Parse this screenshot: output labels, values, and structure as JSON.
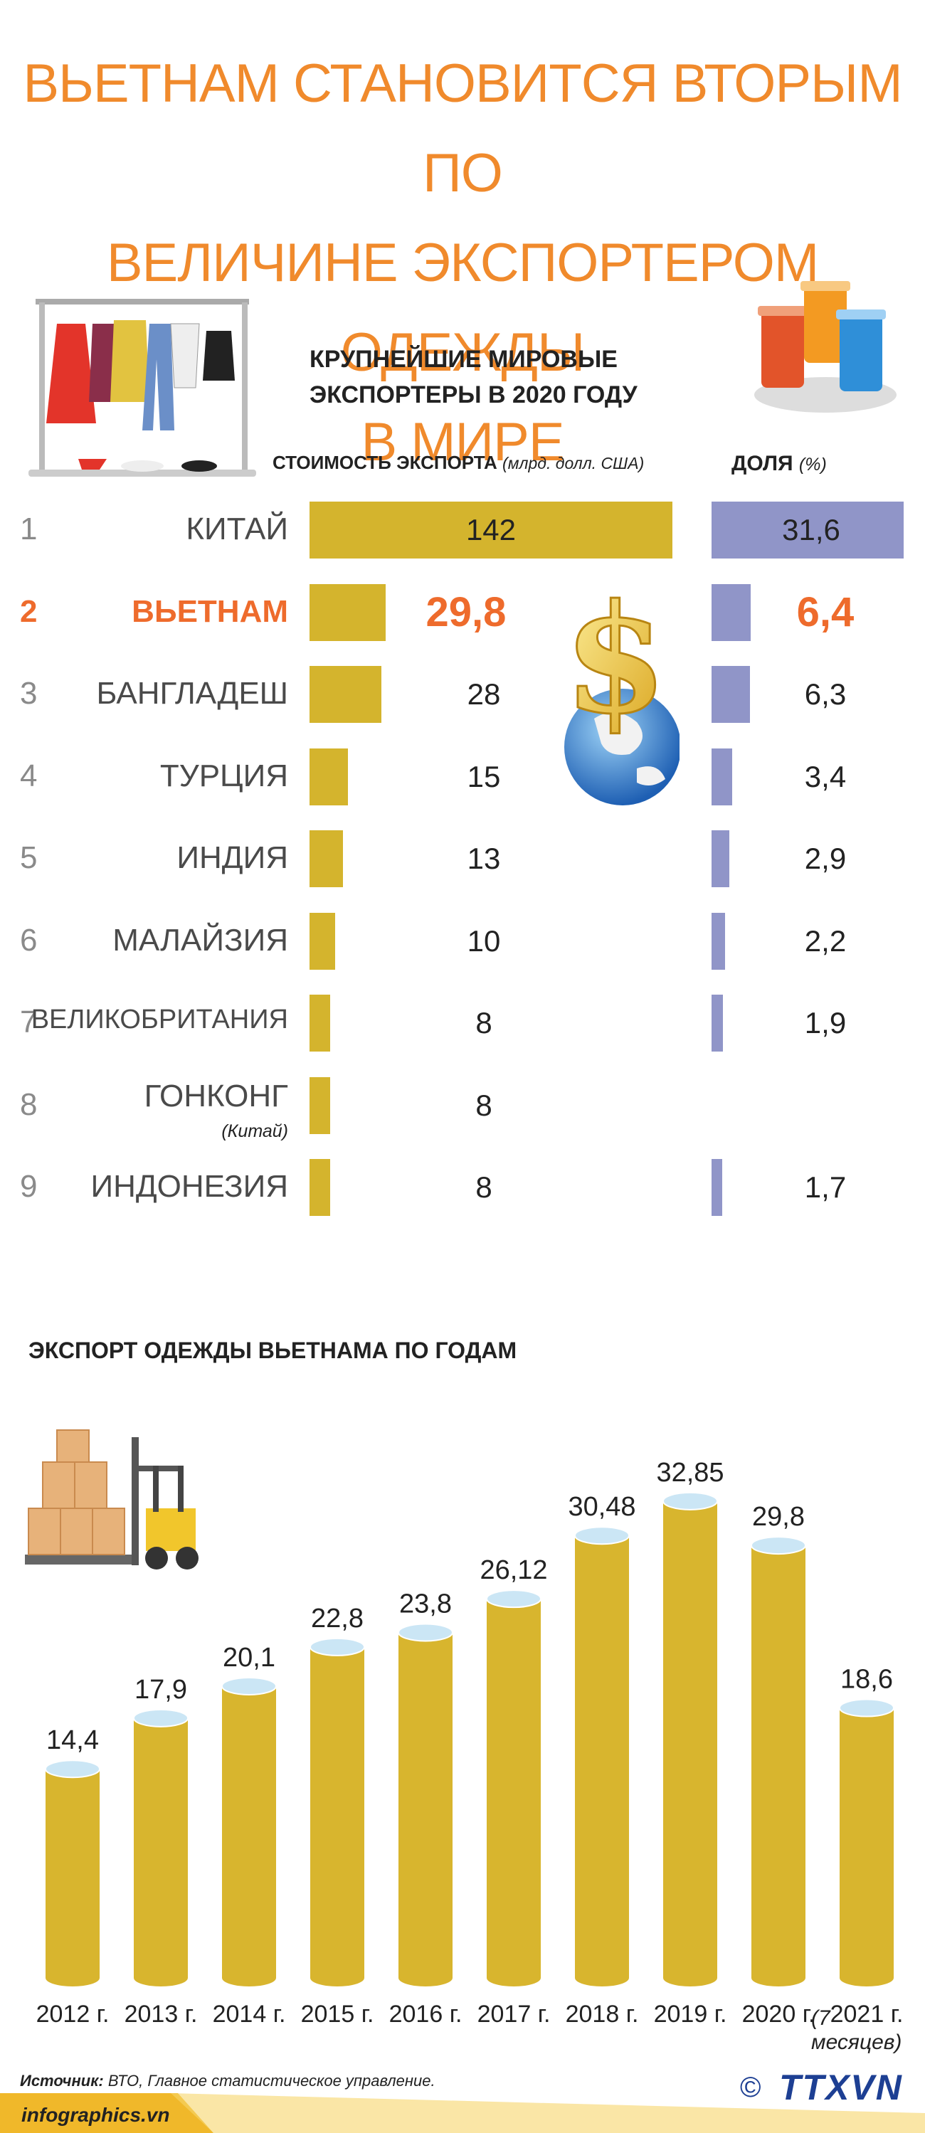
{
  "title": {
    "lines": [
      "ВЬЕТНАМ СТАНОВИТСЯ ВТОРЫМ ПО",
      "ВЕЛИЧИНЕ ЭКСПОРТЕРОМ ОДЕЖДЫ",
      "В МИРЕ"
    ]
  },
  "ranking": {
    "subtitle_line1": "КРУПНЕЙШИЕ МИРОВЫЕ",
    "subtitle_line2": "ЭКСПОРТЕРЫ В 2020 ГОДУ",
    "value_head": "СТОИМОСТЬ ЭКСПОРТА",
    "value_unit": "(млрд. долл. США)",
    "share_head": "ДОЛЯ",
    "share_unit": "(%)",
    "rows": [
      {
        "rank": "1",
        "country": "КИТАЙ",
        "value": 142,
        "value_label": "142",
        "share": 31.6,
        "share_label": "31,6"
      },
      {
        "rank": "2",
        "country": "ВЬЕТНАМ",
        "value": 29.8,
        "value_label": "29,8",
        "share": 6.4,
        "share_label": "6,4",
        "highlight": true
      },
      {
        "rank": "3",
        "country": "БАНГЛАДЕШ",
        "value": 28,
        "value_label": "28",
        "share": 6.3,
        "share_label": "6,3"
      },
      {
        "rank": "4",
        "country": "ТУРЦИЯ",
        "value": 15,
        "value_label": "15",
        "share": 3.4,
        "share_label": "3,4"
      },
      {
        "rank": "5",
        "country": "ИНДИЯ",
        "value": 13,
        "value_label": "13",
        "share": 2.9,
        "share_label": "2,9"
      },
      {
        "rank": "6",
        "country": "МАЛАЙЗИЯ",
        "value": 10,
        "value_label": "10",
        "share": 2.2,
        "share_label": "2,2"
      },
      {
        "rank": "7",
        "country": "ВЕЛИКОБРИТАНИЯ",
        "value": 8,
        "value_label": "8",
        "share": 1.9,
        "share_label": "1,9"
      },
      {
        "rank": "8",
        "country": "ГОНКОНГ",
        "note": "(Китай)",
        "value": 8,
        "value_label": "8",
        "share": null,
        "share_label": ""
      },
      {
        "rank": "9",
        "country": "ИНДОНЕЗИЯ",
        "value": 8,
        "value_label": "8",
        "share": 1.7,
        "share_label": "1,7"
      }
    ]
  },
  "yearly": {
    "title": "ЭКСПОРТ ОДЕЖДЫ ВЬЕТНАМА ПО ГОДАМ",
    "note": "(7 месяцев)"
  },
  "chart_data": [
    {
      "type": "bar",
      "title": "КРУПНЕЙШИЕ МИРОВЫЕ ЭКСПОРТЕРЫ В 2020 ГОДУ",
      "categories": [
        "КИТАЙ",
        "ВЬЕТНАМ",
        "БАНГЛАДЕШ",
        "ТУРЦИЯ",
        "ИНДИЯ",
        "МАЛАЙЗИЯ",
        "ВЕЛИКОБРИТАНИЯ",
        "ГОНКОНГ (Китай)",
        "ИНДОНЕЗИЯ"
      ],
      "series": [
        {
          "name": "СТОИМОСТЬ ЭКСПОРТА (млрд. долл. США)",
          "values": [
            142,
            29.8,
            28,
            15,
            13,
            10,
            8,
            8,
            8
          ]
        },
        {
          "name": "ДОЛЯ (%)",
          "values": [
            31.6,
            6.4,
            6.3,
            3.4,
            2.9,
            2.2,
            1.9,
            null,
            1.7
          ]
        }
      ],
      "orientation": "horizontal"
    },
    {
      "type": "bar",
      "title": "ЭКСПОРТ ОДЕЖДЫ ВЬЕТНАМА ПО ГОДАМ",
      "categories": [
        "2012 г.",
        "2013 г.",
        "2014 г.",
        "2015 г.",
        "2016 г.",
        "2017 г.",
        "2018 г.",
        "2019 г.",
        "2020 г.",
        "2021 г."
      ],
      "values": [
        14.4,
        17.9,
        20.1,
        22.8,
        23.8,
        26.12,
        30.48,
        32.85,
        29.8,
        18.6
      ],
      "value_labels": [
        "14,4",
        "17,9",
        "20,1",
        "22,8",
        "23,8",
        "26,12",
        "30,48",
        "32,85",
        "29,8",
        "18,6"
      ],
      "ylim": [
        0,
        35
      ]
    }
  ],
  "colors": {
    "title": "#f08a2c",
    "highlight": "#ee6b2c",
    "value_bar": "#d4b42d",
    "share_bar": "#9095c8",
    "cylinder_body": "#d8b52e",
    "cylinder_top": "#cbe6f5"
  },
  "footer": {
    "source_label": "Источник:",
    "source_text": "ВТО, Главное статистическое управление.",
    "site": "infographics.vn",
    "agency": "TTXVN",
    "copyright": "©"
  }
}
